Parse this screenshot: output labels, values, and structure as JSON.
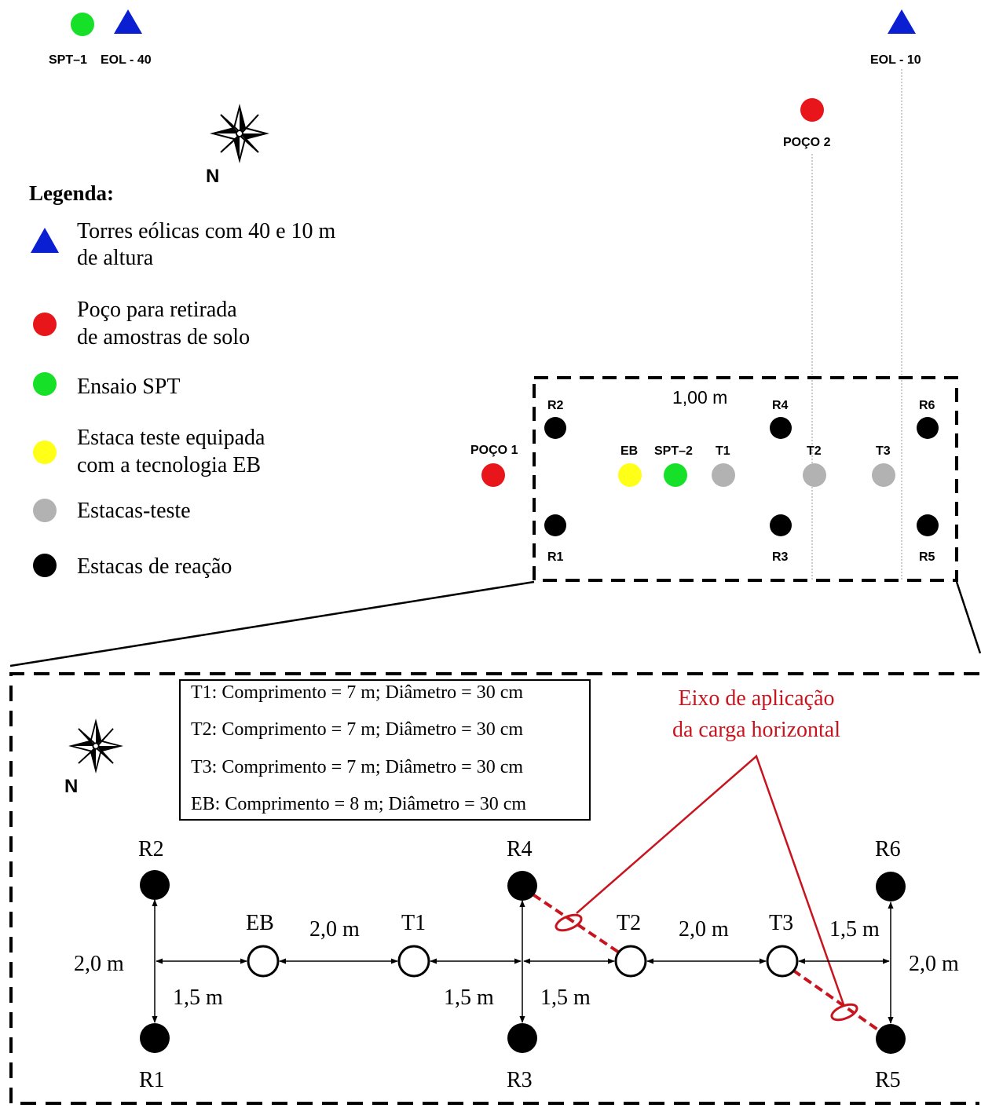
{
  "colors": {
    "tower": "#0a1fd1",
    "well": "#e8151b",
    "spt": "#17e028",
    "eb_pile": "#ffff17",
    "test_pile": "#b2b2b2",
    "reaction_pile": "#000000",
    "load_axis": "#c8141e"
  },
  "top_markers": {
    "spt1_label": "SPT–1",
    "eol40_label": "EOL - 40",
    "eol10_label": "EOL - 10",
    "poco2_label": "POÇO 2"
  },
  "north_label": "N",
  "legend": {
    "title": "Legenda:",
    "items": [
      {
        "icon": "triangle-icon",
        "line1": "Torres eólicas com 40 e 10 m",
        "line2": "de altura"
      },
      {
        "icon": "red-circle-icon",
        "line1": "Poço para retirada",
        "line2": "de amostras de solo"
      },
      {
        "icon": "green-circle-icon",
        "line1": "Ensaio SPT",
        "line2": ""
      },
      {
        "icon": "yellow-circle-icon",
        "line1": "Estaca teste equipada",
        "line2": "com a tecnologia EB"
      },
      {
        "icon": "gray-circle-icon",
        "line1": "Estacas-teste",
        "line2": ""
      },
      {
        "icon": "black-circle-icon",
        "line1": "Estacas de reação",
        "line2": ""
      }
    ]
  },
  "site_plan": {
    "poco1_label": "POÇO 1",
    "distance_label": "1,00 m",
    "r1": "R1",
    "r2": "R2",
    "r3": "R3",
    "r4": "R4",
    "r5": "R5",
    "r6": "R6",
    "eb": "EB",
    "spt2": "SPT–2",
    "t1": "T1",
    "t2": "T2",
    "t3": "T3"
  },
  "detail": {
    "specs": [
      "T1: Comprimento = 7 m; Diâmetro = 30 cm",
      "T2: Comprimento = 7 m; Diâmetro = 30 cm",
      "T3: Comprimento = 7 m; Diâmetro = 30 cm",
      "EB: Comprimento = 8 m; Diâmetro = 30 cm"
    ],
    "load_axis_line1": "Eixo de aplicação",
    "load_axis_line2": "da carga horizontal",
    "piles": {
      "r1": "R1",
      "r2": "R2",
      "r3": "R3",
      "r4": "R4",
      "r5": "R5",
      "r6": "R6",
      "eb": "EB",
      "t1": "T1",
      "t2": "T2",
      "t3": "T3"
    },
    "dims": {
      "left_vertical": "2,0 m",
      "right_vertical": "2,0 m",
      "r_to_eb": "1,5 m",
      "eb_to_t1": "2,0 m",
      "t1_to_r4": "1,5 m",
      "r4_to_t2": "1,5 m",
      "t2_to_t3": "2,0 m",
      "t3_to_r": "1,5 m"
    }
  }
}
